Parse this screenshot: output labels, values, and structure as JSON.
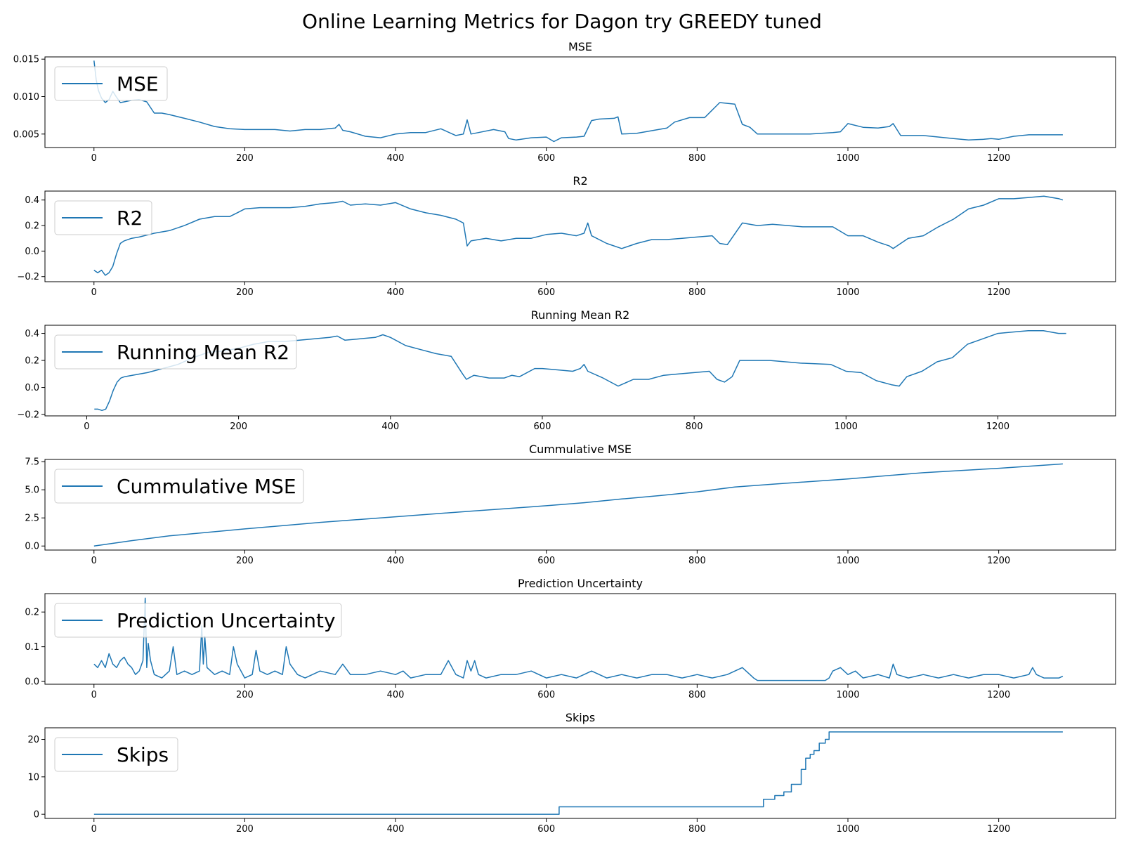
{
  "figure": {
    "title": "Online Learning Metrics for Dagon try GREEDY tuned",
    "line_color": "#1f77b4"
  },
  "chart_data": [
    {
      "type": "line",
      "title": "MSE",
      "legend": "MSE",
      "legend_position": "upper-left",
      "xlim": [
        -65,
        1355
      ],
      "ylim": [
        0.0032,
        0.0153
      ],
      "xticks": [
        0,
        200,
        400,
        600,
        800,
        1000,
        1200
      ],
      "yticks": [
        0.005,
        0.01,
        0.015
      ],
      "ytick_labels": [
        "0.005",
        "0.010",
        "0.015"
      ],
      "x": [
        0,
        3,
        6,
        10,
        15,
        20,
        25,
        30,
        35,
        40,
        50,
        60,
        70,
        80,
        90,
        100,
        120,
        140,
        160,
        180,
        200,
        220,
        240,
        260,
        280,
        300,
        320,
        325,
        330,
        340,
        360,
        380,
        400,
        420,
        440,
        460,
        480,
        490,
        495,
        500,
        510,
        530,
        545,
        550,
        560,
        580,
        600,
        610,
        620,
        640,
        650,
        660,
        670,
        690,
        695,
        700,
        720,
        760,
        770,
        790,
        810,
        820,
        830,
        850,
        860,
        870,
        880,
        900,
        950,
        980,
        990,
        1000,
        1020,
        1040,
        1055,
        1060,
        1070,
        1100,
        1140,
        1160,
        1180,
        1190,
        1200,
        1220,
        1240,
        1260,
        1280,
        1285
      ],
      "values": [
        0.0148,
        0.0122,
        0.0108,
        0.0098,
        0.0092,
        0.0096,
        0.0107,
        0.0099,
        0.0092,
        0.0093,
        0.0095,
        0.0096,
        0.0093,
        0.0078,
        0.0078,
        0.0076,
        0.0071,
        0.0066,
        0.006,
        0.0057,
        0.0056,
        0.0056,
        0.0056,
        0.0054,
        0.0056,
        0.0056,
        0.0058,
        0.0063,
        0.0055,
        0.0053,
        0.0047,
        0.0045,
        0.005,
        0.0052,
        0.0052,
        0.0057,
        0.0048,
        0.005,
        0.0069,
        0.005,
        0.0052,
        0.0056,
        0.0053,
        0.0044,
        0.0042,
        0.0045,
        0.0046,
        0.004,
        0.0045,
        0.0046,
        0.0047,
        0.0068,
        0.007,
        0.0071,
        0.0073,
        0.005,
        0.0051,
        0.0058,
        0.0066,
        0.0072,
        0.0072,
        0.0082,
        0.0092,
        0.009,
        0.0063,
        0.0059,
        0.005,
        0.005,
        0.005,
        0.0052,
        0.0053,
        0.0064,
        0.0059,
        0.0058,
        0.006,
        0.0064,
        0.0048,
        0.0048,
        0.0044,
        0.0042,
        0.0043,
        0.0044,
        0.0043,
        0.0047,
        0.0049,
        0.0049,
        0.0049,
        0.0049
      ]
    },
    {
      "type": "line",
      "title": "R2",
      "legend": "R2",
      "legend_position": "upper-left",
      "xlim": [
        -65,
        1355
      ],
      "ylim": [
        -0.24,
        0.47
      ],
      "xticks": [
        0,
        200,
        400,
        600,
        800,
        1000,
        1200
      ],
      "yticks": [
        -0.2,
        0.0,
        0.2,
        0.4
      ],
      "ytick_labels": [
        "−0.2",
        "0.0",
        "0.2",
        "0.4"
      ],
      "x": [
        0,
        5,
        10,
        15,
        20,
        25,
        30,
        35,
        40,
        50,
        60,
        80,
        100,
        120,
        140,
        160,
        180,
        190,
        200,
        220,
        240,
        260,
        280,
        300,
        320,
        330,
        340,
        360,
        380,
        400,
        420,
        440,
        460,
        480,
        490,
        495,
        500,
        520,
        540,
        560,
        580,
        600,
        620,
        640,
        650,
        655,
        660,
        680,
        700,
        720,
        740,
        760,
        780,
        800,
        820,
        830,
        840,
        860,
        880,
        900,
        940,
        980,
        1000,
        1020,
        1040,
        1055,
        1060,
        1080,
        1100,
        1120,
        1140,
        1160,
        1180,
        1200,
        1220,
        1240,
        1260,
        1280,
        1285
      ],
      "values": [
        -0.15,
        -0.17,
        -0.15,
        -0.19,
        -0.17,
        -0.12,
        -0.02,
        0.06,
        0.08,
        0.1,
        0.11,
        0.14,
        0.16,
        0.2,
        0.25,
        0.27,
        0.27,
        0.3,
        0.33,
        0.34,
        0.34,
        0.34,
        0.35,
        0.37,
        0.38,
        0.39,
        0.36,
        0.37,
        0.36,
        0.38,
        0.33,
        0.3,
        0.28,
        0.25,
        0.22,
        0.04,
        0.08,
        0.1,
        0.08,
        0.1,
        0.1,
        0.13,
        0.14,
        0.12,
        0.14,
        0.22,
        0.12,
        0.06,
        0.02,
        0.06,
        0.09,
        0.09,
        0.1,
        0.11,
        0.12,
        0.06,
        0.05,
        0.22,
        0.2,
        0.21,
        0.19,
        0.19,
        0.12,
        0.12,
        0.07,
        0.04,
        0.02,
        0.1,
        0.12,
        0.19,
        0.25,
        0.33,
        0.36,
        0.41,
        0.41,
        0.42,
        0.43,
        0.41,
        0.4
      ]
    },
    {
      "type": "line",
      "title": "Running Mean R2",
      "legend": "Running Mean R2",
      "legend_position": "upper-left",
      "xlim": [
        -55,
        1355
      ],
      "ylim": [
        -0.21,
        0.46
      ],
      "xticks": [
        0,
        200,
        400,
        600,
        800,
        1000,
        1200
      ],
      "yticks": [
        -0.2,
        0.0,
        0.2,
        0.4
      ],
      "ytick_labels": [
        "−0.2",
        "0.0",
        "0.2",
        "0.4"
      ],
      "x": [
        10,
        15,
        20,
        25,
        30,
        35,
        40,
        45,
        50,
        60,
        80,
        100,
        120,
        140,
        160,
        180,
        200,
        220,
        240,
        260,
        280,
        300,
        320,
        330,
        340,
        360,
        380,
        390,
        400,
        420,
        440,
        460,
        480,
        495,
        500,
        510,
        530,
        550,
        560,
        570,
        590,
        600,
        620,
        640,
        650,
        655,
        660,
        680,
        700,
        720,
        740,
        760,
        780,
        800,
        820,
        830,
        840,
        850,
        860,
        880,
        900,
        940,
        980,
        1000,
        1020,
        1040,
        1060,
        1070,
        1080,
        1100,
        1120,
        1140,
        1160,
        1180,
        1200,
        1220,
        1240,
        1260,
        1280,
        1290
      ],
      "values": [
        -0.16,
        -0.16,
        -0.17,
        -0.16,
        -0.1,
        -0.02,
        0.04,
        0.07,
        0.08,
        0.09,
        0.11,
        0.14,
        0.17,
        0.22,
        0.26,
        0.27,
        0.29,
        0.32,
        0.34,
        0.34,
        0.35,
        0.36,
        0.37,
        0.38,
        0.35,
        0.36,
        0.37,
        0.39,
        0.37,
        0.31,
        0.28,
        0.25,
        0.23,
        0.1,
        0.06,
        0.09,
        0.07,
        0.07,
        0.09,
        0.08,
        0.14,
        0.14,
        0.13,
        0.12,
        0.14,
        0.17,
        0.12,
        0.07,
        0.01,
        0.06,
        0.06,
        0.09,
        0.1,
        0.11,
        0.12,
        0.06,
        0.04,
        0.08,
        0.2,
        0.2,
        0.2,
        0.18,
        0.17,
        0.12,
        0.11,
        0.05,
        0.02,
        0.01,
        0.08,
        0.12,
        0.19,
        0.22,
        0.32,
        0.36,
        0.4,
        0.41,
        0.42,
        0.42,
        0.4,
        0.4
      ]
    },
    {
      "type": "line",
      "title": "Cummulative MSE",
      "legend": "Cummulative MSE",
      "legend_position": "upper-left",
      "xlim": [
        -65,
        1355
      ],
      "ylim": [
        -0.36,
        7.7
      ],
      "xticks": [
        0,
        200,
        400,
        600,
        800,
        1000,
        1200
      ],
      "yticks": [
        0.0,
        2.5,
        5.0,
        7.5
      ],
      "ytick_labels": [
        "0.0",
        "2.5",
        "5.0",
        "7.5"
      ],
      "x": [
        0,
        50,
        100,
        200,
        300,
        400,
        500,
        600,
        650,
        700,
        750,
        800,
        850,
        900,
        1000,
        1050,
        1100,
        1200,
        1285
      ],
      "values": [
        0.0,
        0.48,
        0.9,
        1.52,
        2.1,
        2.6,
        3.1,
        3.58,
        3.85,
        4.18,
        4.48,
        4.82,
        5.25,
        5.5,
        5.96,
        6.25,
        6.52,
        6.91,
        7.3
      ]
    },
    {
      "type": "line",
      "title": "Prediction Uncertainty",
      "legend": "Prediction Uncertainty",
      "legend_position": "upper-left",
      "xlim": [
        -65,
        1355
      ],
      "ylim": [
        -0.008,
        0.253
      ],
      "xticks": [
        0,
        200,
        400,
        600,
        800,
        1000,
        1200
      ],
      "yticks": [
        0.0,
        0.1,
        0.2
      ],
      "ytick_labels": [
        "0.0",
        "0.1",
        "0.2"
      ],
      "x": [
        0,
        5,
        10,
        15,
        20,
        25,
        30,
        35,
        40,
        45,
        50,
        55,
        60,
        65,
        68,
        70,
        72,
        75,
        80,
        90,
        100,
        105,
        110,
        120,
        130,
        140,
        143,
        145,
        147,
        150,
        160,
        170,
        180,
        185,
        190,
        200,
        210,
        215,
        220,
        230,
        240,
        250,
        255,
        260,
        270,
        280,
        300,
        320,
        330,
        340,
        360,
        380,
        400,
        410,
        420,
        440,
        460,
        470,
        480,
        490,
        495,
        500,
        505,
        510,
        520,
        540,
        560,
        580,
        600,
        620,
        640,
        650,
        660,
        680,
        700,
        720,
        740,
        760,
        780,
        800,
        820,
        840,
        860,
        870,
        875,
        880,
        885,
        900,
        950,
        970,
        975,
        980,
        990,
        1000,
        1010,
        1020,
        1040,
        1055,
        1060,
        1065,
        1080,
        1100,
        1120,
        1140,
        1160,
        1180,
        1200,
        1220,
        1240,
        1245,
        1250,
        1260,
        1280,
        1285
      ],
      "values": [
        0.05,
        0.04,
        0.06,
        0.04,
        0.08,
        0.05,
        0.04,
        0.06,
        0.07,
        0.05,
        0.04,
        0.02,
        0.03,
        0.06,
        0.24,
        0.04,
        0.11,
        0.06,
        0.02,
        0.01,
        0.03,
        0.1,
        0.02,
        0.03,
        0.02,
        0.03,
        0.16,
        0.05,
        0.13,
        0.04,
        0.02,
        0.03,
        0.02,
        0.1,
        0.05,
        0.01,
        0.02,
        0.09,
        0.03,
        0.02,
        0.03,
        0.02,
        0.1,
        0.05,
        0.02,
        0.01,
        0.03,
        0.02,
        0.05,
        0.02,
        0.02,
        0.03,
        0.02,
        0.03,
        0.01,
        0.02,
        0.02,
        0.06,
        0.02,
        0.01,
        0.06,
        0.03,
        0.06,
        0.02,
        0.01,
        0.02,
        0.02,
        0.03,
        0.01,
        0.02,
        0.01,
        0.02,
        0.03,
        0.01,
        0.02,
        0.01,
        0.02,
        0.02,
        0.01,
        0.02,
        0.01,
        0.02,
        0.04,
        0.02,
        0.01,
        0.003,
        0.003,
        0.003,
        0.003,
        0.003,
        0.01,
        0.03,
        0.04,
        0.02,
        0.03,
        0.01,
        0.02,
        0.01,
        0.05,
        0.02,
        0.01,
        0.02,
        0.01,
        0.02,
        0.01,
        0.02,
        0.02,
        0.01,
        0.02,
        0.04,
        0.02,
        0.01,
        0.01,
        0.015
      ]
    },
    {
      "type": "line",
      "title": "Skips",
      "legend": "Skips",
      "legend_position": "upper-left",
      "xlim": [
        -65,
        1355
      ],
      "ylim": [
        -1.1,
        23.1
      ],
      "xticks": [
        0,
        200,
        400,
        600,
        800,
        1000,
        1200
      ],
      "yticks": [
        0,
        10,
        20
      ],
      "ytick_labels": [
        "0",
        "10",
        "20"
      ],
      "step": true,
      "x": [
        0,
        617,
        888,
        903,
        915,
        925,
        938,
        944,
        950,
        955,
        962,
        970,
        975,
        1285
      ],
      "values": [
        0,
        2,
        4,
        5,
        6,
        8,
        12,
        15,
        16,
        17,
        19,
        20,
        22,
        22
      ]
    }
  ]
}
